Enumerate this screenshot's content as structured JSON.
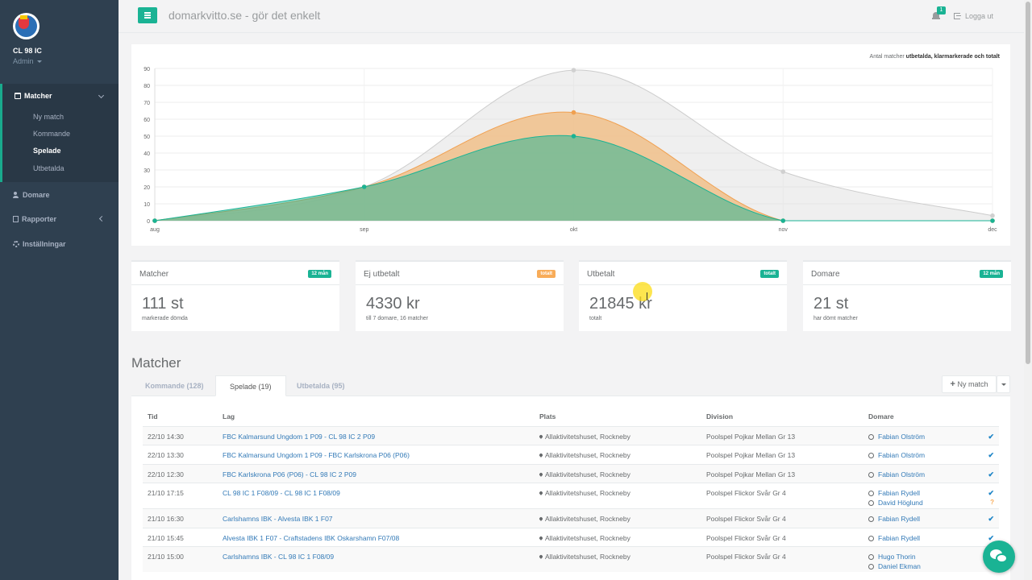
{
  "sidebar": {
    "club_name": "CL 98 IC",
    "role": "Admin",
    "matches_label": "Matcher",
    "sub_items": [
      "Ny match",
      "Kommande",
      "Spelade",
      "Utbetalda"
    ],
    "active_sub_item": "Spelade",
    "nav_items": [
      "Domare",
      "Rapporter",
      "Inställningar"
    ]
  },
  "topbar": {
    "title": "domarkvitto.se - gör det enkelt",
    "notification_count": "1",
    "logout_label": "Logga ut"
  },
  "chart_data": {
    "type": "area",
    "legend_prefix": "Antal matcher ",
    "legend_bold": "utbetalda, klarmarkerade och totalt",
    "x": [
      "aug",
      "sep",
      "okt",
      "nov",
      "dec"
    ],
    "ylim": [
      0,
      90
    ],
    "yticks": [
      "0",
      "10",
      "20",
      "30",
      "40",
      "50",
      "60",
      "70",
      "80",
      "90"
    ],
    "series": [
      {
        "values": [
          0,
          20,
          89,
          29,
          3
        ],
        "color": "#dcdcdc"
      },
      {
        "values": [
          0,
          20,
          64,
          0,
          0
        ],
        "color": "#f0c08a"
      },
      {
        "values": [
          0,
          20,
          50,
          0,
          0
        ],
        "color": "#1ab394"
      }
    ]
  },
  "cards": [
    {
      "title": "Matcher",
      "badge": "12 mån",
      "badge_color": "#1ab394",
      "value": "111 st",
      "sub": "markerade dömda"
    },
    {
      "title": "Ej utbetalt",
      "badge": "totalt",
      "badge_color": "#f8ac59",
      "value": "4330 kr",
      "sub": "till 7 domare, 16 matcher"
    },
    {
      "title": "Utbetalt",
      "badge": "totalt",
      "badge_color": "#1ab394",
      "value": "21845 kr",
      "sub": "totalt"
    },
    {
      "title": "Domare",
      "badge": "12 mån",
      "badge_color": "#1ab394",
      "value": "21 st",
      "sub": "har dömt matcher"
    }
  ],
  "matches": {
    "title": "Matcher",
    "tabs": [
      "Kommande (128)",
      "Spelade (19)",
      "Utbetalda (95)"
    ],
    "new_match_label": "Ny match",
    "columns": [
      "Tid",
      "Lag",
      "Plats",
      "Division",
      "Domare"
    ],
    "rows": [
      {
        "time": "22/10 14:30",
        "team": "FBC Kalmarsund Ungdom 1 P09 - CL 98 IC 2 P09",
        "place": "Allaktivitetshuset, Rockneby",
        "division": "Poolspel Pojkar Mellan Gr 13",
        "referees": [
          "Fabian Olström"
        ],
        "status": [
          "check"
        ]
      },
      {
        "time": "22/10 13:30",
        "team": "FBC Kalmarsund Ungdom 1 P09 - FBC Karlskrona P06 (P06)",
        "place": "Allaktivitetshuset, Rockneby",
        "division": "Poolspel Pojkar Mellan Gr 13",
        "referees": [
          "Fabian Olström"
        ],
        "status": [
          "check"
        ]
      },
      {
        "time": "22/10 12:30",
        "team": "FBC Karlskrona P06 (P06) - CL 98 IC 2 P09",
        "place": "Allaktivitetshuset, Rockneby",
        "division": "Poolspel Pojkar Mellan Gr 13",
        "referees": [
          "Fabian Olström"
        ],
        "status": [
          "check"
        ]
      },
      {
        "time": "21/10 17:15",
        "team": "CL 98 IC 1 F08/09 - CL 98 IC 1 F08/09",
        "place": "Allaktivitetshuset, Rockneby",
        "division": "Poolspel Flickor Svår Gr 4",
        "referees": [
          "Fabian Rydell",
          "David Höglund"
        ],
        "status": [
          "check",
          "question"
        ]
      },
      {
        "time": "21/10 16:30",
        "team": "Carlshamns IBK - Alvesta IBK 1 F07",
        "place": "Allaktivitetshuset, Rockneby",
        "division": "Poolspel Flickor Svår Gr 4",
        "referees": [
          "Fabian Rydell"
        ],
        "status": [
          "check"
        ]
      },
      {
        "time": "21/10 15:45",
        "team": "Alvesta IBK 1 F07 - Craftstadens IBK Oskarshamn F07/08",
        "place": "Allaktivitetshuset, Rockneby",
        "division": "Poolspel Flickor Svår Gr 4",
        "referees": [
          "Fabian Rydell"
        ],
        "status": [
          "check"
        ]
      },
      {
        "time": "21/10 15:00",
        "team": "Carlshamns IBK - CL 98 IC 1 F08/09",
        "place": "Allaktivitetshuset, Rockneby",
        "division": "Poolspel Flickor Svår Gr 4",
        "referees": [
          "Hugo Thorin",
          "Daniel Ekman"
        ],
        "status": [
          "check"
        ]
      }
    ]
  }
}
